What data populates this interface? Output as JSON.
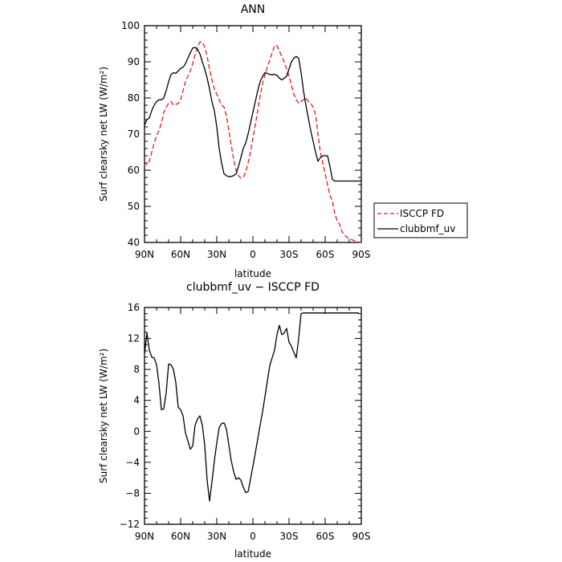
{
  "chart_data": [
    {
      "type": "line",
      "title": "ANN",
      "xlabel": "latitude",
      "ylabel": "Surf clearsky net LW (W/m²)",
      "xlim": [
        90,
        -90
      ],
      "ylim": [
        40,
        100
      ],
      "xticks": [
        90,
        60,
        30,
        0,
        -30,
        -60,
        -90
      ],
      "xtick_labels": [
        "90N",
        "60N",
        "30N",
        "0",
        "30S",
        "60S",
        "90S"
      ],
      "yticks": [
        40,
        50,
        60,
        70,
        80,
        90,
        100
      ],
      "legend_position": "right",
      "series": [
        {
          "name": "ISCCP FD",
          "color": "#e41a1c",
          "dash": true,
          "x": [
            90,
            88,
            86,
            84,
            82,
            80,
            78,
            76,
            74,
            72,
            70,
            68,
            66,
            64,
            62,
            60,
            58,
            56,
            54,
            52,
            50,
            48,
            46,
            44,
            42,
            40,
            38,
            36,
            34,
            32,
            30,
            28,
            26,
            24,
            22,
            20,
            18,
            16,
            14,
            12,
            10,
            8,
            6,
            4,
            2,
            0,
            -2,
            -4,
            -6,
            -8,
            -10,
            -12,
            -14,
            -16,
            -18,
            -20,
            -22,
            -24,
            -26,
            -28,
            -30,
            -32,
            -34,
            -36,
            -38,
            -40,
            -42,
            -44,
            -46,
            -48,
            -50,
            -52,
            -54,
            -56,
            -58,
            -60,
            -62,
            -64,
            -66,
            -68,
            -70,
            -72,
            -74,
            -76,
            -78,
            -80,
            -82,
            -84,
            -86,
            -88,
            -90
          ],
          "y": [
            62.5,
            61.5,
            62.5,
            65,
            67.5,
            69.5,
            71,
            73,
            76,
            77.5,
            78.5,
            79,
            78,
            78.2,
            78.5,
            79.5,
            82,
            84.5,
            86,
            87.5,
            89.5,
            92,
            94,
            95.5,
            95.5,
            94,
            91.5,
            88,
            85,
            82.5,
            81,
            79.5,
            78,
            77.5,
            75,
            71,
            67,
            63,
            60,
            58.5,
            57.8,
            58,
            59.5,
            62,
            65,
            69,
            72.5,
            76.5,
            80.5,
            84,
            86.5,
            88.5,
            90.5,
            92.5,
            94.5,
            94.5,
            93,
            91.5,
            90,
            88,
            86,
            83.5,
            81,
            79.5,
            78.5,
            79,
            79.5,
            80,
            79,
            78.5,
            77.5,
            75.5,
            70,
            65,
            62,
            59,
            56,
            53,
            51.5,
            48,
            46,
            45,
            43,
            42,
            41.5,
            41,
            40.8,
            40.5,
            40.3,
            40.1,
            40
          ]
        },
        {
          "name": "clubbmf_uv",
          "color": "#000000",
          "dash": false,
          "x": [
            90,
            88,
            86,
            84,
            82,
            80,
            78,
            76,
            74,
            72,
            70,
            68,
            66,
            64,
            62,
            60,
            58,
            56,
            54,
            52,
            50,
            48,
            46,
            44,
            42,
            40,
            38,
            36,
            34,
            32,
            30,
            28,
            26,
            24,
            22,
            20,
            18,
            16,
            14,
            12,
            10,
            8,
            6,
            4,
            2,
            0,
            -2,
            -4,
            -6,
            -8,
            -10,
            -12,
            -14,
            -16,
            -18,
            -20,
            -22,
            -24,
            -26,
            -28,
            -30,
            -32,
            -34,
            -36,
            -38,
            -40,
            -42,
            -44,
            -46,
            -48,
            -50,
            -52,
            -54,
            -56,
            -58,
            -60,
            -62,
            -64,
            -66,
            -68,
            -70,
            -72,
            -74,
            -76,
            -78,
            -80,
            -82,
            -84,
            -86,
            -88,
            -90
          ],
          "y": [
            72.5,
            74,
            74.5,
            76.5,
            78,
            79,
            79.5,
            79.5,
            80,
            82,
            84.5,
            86.5,
            87,
            86.8,
            87.5,
            88.2,
            88.5,
            89.5,
            91,
            92.5,
            93.8,
            94,
            93.5,
            92.2,
            90,
            88,
            85.5,
            82.5,
            79,
            76.5,
            72,
            66,
            62,
            59,
            58.5,
            58.2,
            58.3,
            58.5,
            59,
            61,
            63.5,
            66,
            67.5,
            70,
            73,
            76,
            79,
            82,
            84.5,
            86,
            87,
            86.8,
            86.5,
            86.5,
            86.5,
            86.3,
            85.5,
            85,
            85.5,
            86,
            88,
            90,
            91,
            91.5,
            91,
            87,
            82,
            78,
            74.5,
            71,
            68,
            65,
            62.5,
            63.5,
            64,
            64,
            64,
            61,
            57.5,
            57,
            57,
            57,
            57,
            57,
            57,
            57,
            57,
            57,
            57,
            57,
            57
          ]
        }
      ]
    },
    {
      "type": "line",
      "title": "clubbmf_uv − ISCCP FD",
      "xlabel": "latitude",
      "ylabel": "Surf clearsky net LW (W/m²)",
      "xlim": [
        90,
        -90
      ],
      "ylim": [
        -12,
        16
      ],
      "xticks": [
        90,
        60,
        30,
        0,
        -30,
        -60,
        -90
      ],
      "xtick_labels": [
        "90N",
        "60N",
        "30N",
        "0",
        "30S",
        "60S",
        "90S"
      ],
      "yticks": [
        -12,
        -8,
        -4,
        0,
        4,
        8,
        12,
        16
      ],
      "series": [
        {
          "color": "#000000",
          "dash": false,
          "x": [
            90,
            88,
            86,
            84,
            82,
            80,
            78,
            76,
            74,
            72,
            70,
            68,
            66,
            64,
            62,
            60,
            58,
            56,
            54,
            52,
            50,
            48,
            46,
            44,
            42,
            40,
            38,
            36,
            34,
            32,
            30,
            28,
            26,
            24,
            22,
            20,
            18,
            16,
            14,
            12,
            10,
            8,
            6,
            4,
            2,
            0,
            -2,
            -4,
            -6,
            -8,
            -10,
            -12,
            -14,
            -16,
            -18,
            -20,
            -22,
            -24,
            -26,
            -28,
            -30,
            -32,
            -34,
            -36,
            -38,
            -40,
            -42,
            -44,
            -46,
            -48,
            -50,
            -52,
            -54,
            -56,
            -58,
            -60,
            -62,
            -64,
            -66,
            -68,
            -70,
            -72,
            -74,
            -76,
            -78,
            -80,
            -82,
            -84,
            -86,
            -88
          ],
          "y": [
            10,
            12.7,
            10.5,
            9.6,
            9.5,
            8.6,
            6.2,
            2.8,
            2.9,
            5,
            8.7,
            8.6,
            8,
            6.3,
            3.1,
            2.8,
            2,
            -0.2,
            -1.2,
            -2.3,
            -1.9,
            0.8,
            1.6,
            2,
            0.8,
            -1.8,
            -6.3,
            -9,
            -6.5,
            -3.8,
            -1.5,
            0.5,
            1,
            1.1,
            0.3,
            -1.7,
            -3.8,
            -5.2,
            -6.2,
            -6,
            -6.3,
            -7.2,
            -7.9,
            -7.8,
            -6.2,
            -4.5,
            -2.8,
            -1,
            0.8,
            2.5,
            4.5,
            6.5,
            8.5,
            9.5,
            10.5,
            12.5,
            13.7,
            12.5,
            12.7,
            13.3,
            11.5,
            11,
            10.2,
            9.5,
            12,
            15.2,
            15.3,
            15.3,
            15.3,
            15.3,
            15.3,
            15.3,
            15.3,
            15.3,
            15.3,
            15.3,
            15.3,
            15.3,
            15.3,
            15.3,
            15.3,
            15.3,
            15.3,
            15.3,
            15.3,
            15.3,
            15.3,
            15.3,
            15.3,
            15.3
          ]
        }
      ]
    }
  ]
}
